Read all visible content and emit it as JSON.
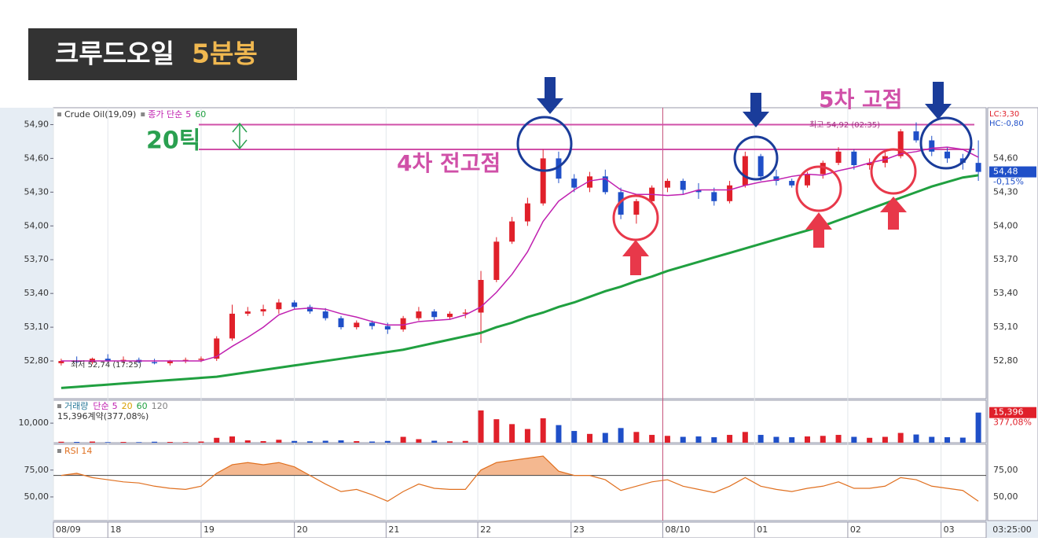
{
  "title": {
    "main": "크루드오일",
    "accent": "5분봉"
  },
  "chart_data": [
    {
      "type": "candlestick",
      "symbol_label": "Crude Oil(19,09)",
      "indicator_label": "종가 단순",
      "up_color": "#e0202a",
      "down_color": "#1f4fc8",
      "candles": [
        [
          52.78,
          52.82,
          52.76,
          52.8
        ],
        [
          52.8,
          52.84,
          52.78,
          52.79
        ],
        [
          52.79,
          52.83,
          52.77,
          52.82
        ],
        [
          52.82,
          52.86,
          52.79,
          52.8
        ],
        [
          52.8,
          52.84,
          52.78,
          52.81
        ],
        [
          52.81,
          52.83,
          52.78,
          52.79
        ],
        [
          52.79,
          52.82,
          52.77,
          52.78
        ],
        [
          52.78,
          52.81,
          52.76,
          52.8
        ],
        [
          52.8,
          52.83,
          52.78,
          52.81
        ],
        [
          52.81,
          52.84,
          52.79,
          52.82
        ],
        [
          52.82,
          53.02,
          52.8,
          53.0
        ],
        [
          53.0,
          53.3,
          52.98,
          53.22
        ],
        [
          53.22,
          53.28,
          53.2,
          53.24
        ],
        [
          53.24,
          53.3,
          53.2,
          53.26
        ],
        [
          53.26,
          53.35,
          53.22,
          53.32
        ],
        [
          53.32,
          53.34,
          53.26,
          53.28
        ],
        [
          53.28,
          53.3,
          53.22,
          53.24
        ],
        [
          53.24,
          53.27,
          53.16,
          53.18
        ],
        [
          53.18,
          53.2,
          53.08,
          53.1
        ],
        [
          53.1,
          53.16,
          53.08,
          53.14
        ],
        [
          53.14,
          53.16,
          53.08,
          53.11
        ],
        [
          53.11,
          53.14,
          53.04,
          53.08
        ],
        [
          53.08,
          53.2,
          53.06,
          53.18
        ],
        [
          53.18,
          53.28,
          53.16,
          53.24
        ],
        [
          53.24,
          53.26,
          53.16,
          53.19
        ],
        [
          53.19,
          53.24,
          53.17,
          53.22
        ],
        [
          53.22,
          53.26,
          53.18,
          53.23
        ],
        [
          53.23,
          53.6,
          52.96,
          53.52
        ],
        [
          53.52,
          53.9,
          53.5,
          53.86
        ],
        [
          53.86,
          54.08,
          53.84,
          54.04
        ],
        [
          54.04,
          54.25,
          54.0,
          54.2
        ],
        [
          54.2,
          54.68,
          54.18,
          54.6
        ],
        [
          54.6,
          54.66,
          54.38,
          54.42
        ],
        [
          54.42,
          54.46,
          54.3,
          54.34
        ],
        [
          54.34,
          54.48,
          54.3,
          54.44
        ],
        [
          54.44,
          54.5,
          54.28,
          54.3
        ],
        [
          54.3,
          54.34,
          54.06,
          54.1
        ],
        [
          54.1,
          54.24,
          54.02,
          54.22
        ],
        [
          54.22,
          54.36,
          54.2,
          54.34
        ],
        [
          54.34,
          54.42,
          54.3,
          54.4
        ],
        [
          54.4,
          54.42,
          54.28,
          54.32
        ],
        [
          54.32,
          54.38,
          54.24,
          54.3
        ],
        [
          54.3,
          54.34,
          54.18,
          54.22
        ],
        [
          54.22,
          54.4,
          54.2,
          54.36
        ],
        [
          54.36,
          54.66,
          54.34,
          54.62
        ],
        [
          54.62,
          54.64,
          54.4,
          54.44
        ],
        [
          54.44,
          54.5,
          54.36,
          54.4
        ],
        [
          54.4,
          54.42,
          54.34,
          54.36
        ],
        [
          54.36,
          54.48,
          54.34,
          54.46
        ],
        [
          54.46,
          54.58,
          54.42,
          54.56
        ],
        [
          54.56,
          54.7,
          54.54,
          54.66
        ],
        [
          54.66,
          54.68,
          54.5,
          54.54
        ],
        [
          54.54,
          54.6,
          54.5,
          54.56
        ],
        [
          54.56,
          54.66,
          54.52,
          54.62
        ],
        [
          54.62,
          54.86,
          54.6,
          54.84
        ],
        [
          54.84,
          54.92,
          54.74,
          54.76
        ],
        [
          54.76,
          54.8,
          54.62,
          54.66
        ],
        [
          54.66,
          54.7,
          54.56,
          54.6
        ],
        [
          54.6,
          54.64,
          54.5,
          54.56
        ],
        [
          54.56,
          54.76,
          54.4,
          54.48
        ]
      ],
      "lines": [
        {
          "name": "5",
          "color": "#c020b0",
          "values": [
            52.8,
            52.8,
            52.8,
            52.8,
            52.8,
            52.8,
            52.8,
            52.8,
            52.8,
            52.8,
            52.84,
            52.93,
            53.01,
            53.1,
            53.21,
            53.26,
            53.27,
            53.26,
            53.22,
            53.19,
            53.15,
            53.12,
            53.12,
            53.15,
            53.16,
            53.17,
            53.21,
            53.28,
            53.41,
            53.57,
            53.77,
            54.04,
            54.22,
            54.32,
            54.4,
            54.42,
            54.32,
            54.28,
            54.28,
            54.27,
            54.28,
            54.32,
            54.32,
            54.32,
            54.36,
            54.39,
            54.41,
            54.44,
            54.46,
            54.45,
            54.49,
            54.52,
            54.56,
            54.59,
            54.64,
            54.66,
            54.69,
            54.7,
            54.68,
            54.61
          ]
        },
        {
          "name": "60",
          "color": "#20a040",
          "values": [
            52.56,
            52.57,
            52.58,
            52.59,
            52.6,
            52.61,
            52.62,
            52.63,
            52.64,
            52.65,
            52.66,
            52.68,
            52.7,
            52.72,
            52.74,
            52.76,
            52.78,
            52.8,
            52.82,
            52.84,
            52.86,
            52.88,
            52.9,
            52.93,
            52.96,
            52.99,
            53.02,
            53.05,
            53.1,
            53.14,
            53.19,
            53.23,
            53.28,
            53.32,
            53.37,
            53.42,
            53.46,
            53.51,
            53.55,
            53.6,
            53.64,
            53.68,
            53.72,
            53.76,
            53.8,
            53.84,
            53.88,
            53.92,
            53.96,
            54.0,
            54.05,
            54.1,
            54.15,
            54.2,
            54.25,
            54.3,
            54.35,
            54.39,
            54.43,
            54.45
          ]
        }
      ],
      "xlim": [
        0,
        60
      ],
      "ylim": [
        52.465,
        55.05
      ],
      "yticks": [
        {
          "value": 54.9,
          "label": "54,90"
        },
        {
          "value": 54.6,
          "label": "54,60"
        },
        {
          "value": 54.3,
          "label": "54,30"
        },
        {
          "value": 54.0,
          "label": "54,00"
        },
        {
          "value": 53.7,
          "label": "53,70"
        },
        {
          "value": 53.4,
          "label": "53,40"
        },
        {
          "value": 53.1,
          "label": "53,10"
        },
        {
          "value": 52.8,
          "label": "52,80"
        }
      ],
      "xticks": [
        {
          "value": 0,
          "label": "08/09"
        },
        {
          "value": 3.5,
          "label": "18"
        },
        {
          "value": 9.5,
          "label": "19"
        },
        {
          "value": 15.5,
          "label": "20"
        },
        {
          "value": 21.4,
          "label": "21"
        },
        {
          "value": 27.3,
          "label": "22"
        },
        {
          "value": 33.3,
          "label": "23"
        },
        {
          "value": 39.2,
          "label": "08/10"
        },
        {
          "value": 45.1,
          "label": "01"
        },
        {
          "value": 51.1,
          "label": "02"
        },
        {
          "value": 57.1,
          "label": "03"
        }
      ],
      "x_end_label": "03:25:00",
      "high_note": "최고 54,92 (02:35)",
      "low_note": "최저 52,74 (17:25)",
      "last": {
        "value": 54.48,
        "label": "54,48"
      },
      "change_label": "-0,15%",
      "lc_label": "LC:3,30",
      "hc_label": "HC:-0,80",
      "levels": [
        54.9,
        54.68
      ],
      "annotations": {
        "ticks": "20틱",
        "prev_high": "4차 전고점",
        "high5": "5차 고점"
      }
    },
    {
      "type": "bar",
      "label": "거래량",
      "ma_label": "단순",
      "ma_names": [
        {
          "name": "5",
          "color": "#c020b0"
        },
        {
          "name": "20",
          "color": "#d8a000"
        },
        {
          "name": "60",
          "color": "#20a040"
        },
        {
          "name": "120",
          "color": "#808080"
        }
      ],
      "summary": "15,396계약(377,08%)",
      "values": [
        500,
        400,
        600,
        300,
        400,
        300,
        500,
        400,
        300,
        600,
        2500,
        3200,
        1200,
        800,
        1500,
        900,
        700,
        1000,
        1200,
        800,
        600,
        900,
        3000,
        1800,
        1000,
        700,
        900,
        16500,
        12000,
        9500,
        7000,
        12500,
        9000,
        6000,
        4500,
        5000,
        7500,
        5500,
        4000,
        3500,
        3000,
        3200,
        2800,
        4000,
        5500,
        4000,
        3000,
        2800,
        3200,
        3500,
        4000,
        3000,
        2500,
        3000,
        5000,
        4200,
        3000,
        2800,
        2600,
        15396
      ],
      "ylim": [
        0,
        21700
      ],
      "yticks": [
        {
          "value": 10000,
          "label": "10,000"
        }
      ],
      "last": {
        "value": 15396,
        "label": "15,396"
      },
      "change_label": "377,08%"
    },
    {
      "type": "line",
      "label": "RSI 14",
      "color": "#e07020",
      "fill": "#f4b890",
      "values": [
        70,
        72,
        68,
        66,
        64,
        63,
        60,
        58,
        57,
        60,
        72,
        80,
        82,
        80,
        82,
        78,
        70,
        62,
        55,
        57,
        52,
        46,
        55,
        62,
        58,
        57,
        57,
        75,
        82,
        84,
        86,
        88,
        74,
        70,
        70,
        66,
        56,
        60,
        64,
        66,
        60,
        57,
        54,
        60,
        68,
        60,
        57,
        55,
        58,
        60,
        64,
        58,
        58,
        60,
        68,
        66,
        60,
        58,
        56,
        46
      ],
      "ylim": [
        28,
        99
      ],
      "yticks": [
        {
          "value": 75,
          "label": "75,00"
        },
        {
          "value": 50,
          "label": "50,00"
        }
      ],
      "threshold": 70
    }
  ]
}
